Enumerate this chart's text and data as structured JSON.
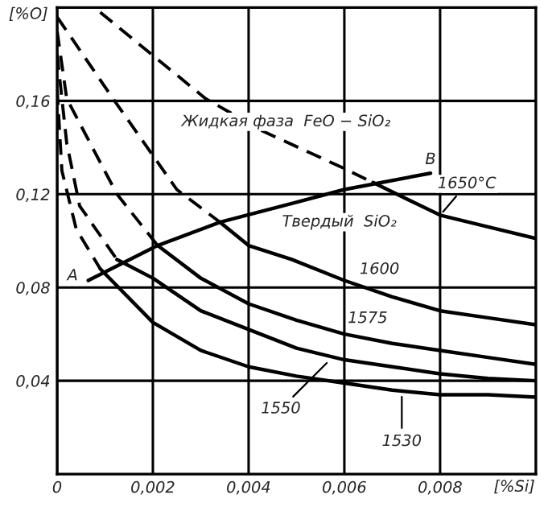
{
  "chart_data": {
    "type": "line",
    "xlabel": "[%Si]",
    "ylabel": "[%O]",
    "xlim": [
      0,
      0.01
    ],
    "ylim": [
      0,
      0.2
    ],
    "xticks": [
      {
        "value": 0,
        "label": "0"
      },
      {
        "value": 0.002,
        "label": "0,002"
      },
      {
        "value": 0.004,
        "label": "0,004"
      },
      {
        "value": 0.006,
        "label": "0,006"
      },
      {
        "value": 0.008,
        "label": "0,008"
      }
    ],
    "yticks": [
      {
        "value": 0.04,
        "label": "0,04"
      },
      {
        "value": 0.08,
        "label": "0,08"
      },
      {
        "value": 0.12,
        "label": "0,12"
      },
      {
        "value": 0.16,
        "label": "0,16"
      }
    ],
    "grid": true,
    "line_style": "solid",
    "marker": "none",
    "series": [
      {
        "color": "#000000",
        "line_style": "dashed",
        "x": [
          0.0009,
          0.0031,
          0.0043,
          0.006,
          0.0066
        ],
        "values": [
          0.198,
          0.161,
          0.147,
          0.131,
          0.125
        ]
      },
      {
        "color": "#000000",
        "x": [
          0.0066,
          0.008,
          0.009,
          0.01
        ],
        "values": [
          0.125,
          0.111,
          0.106,
          0.101
        ]
      },
      {
        "color": "#000000",
        "line_style": "dashed",
        "x": [
          0.0,
          0.0012,
          0.0025,
          0.0034
        ],
        "values": [
          0.196,
          0.16,
          0.122,
          0.108
        ]
      },
      {
        "color": "#000000",
        "x": [
          0.0034,
          0.004,
          0.0049,
          0.006,
          0.007,
          0.008,
          0.009,
          0.01
        ],
        "values": [
          0.108,
          0.098,
          0.092,
          0.083,
          0.076,
          0.07,
          0.067,
          0.064
        ]
      },
      {
        "color": "#000000",
        "line_style": "dashed",
        "x": [
          0.0,
          0.0002,
          0.00125,
          0.0021
        ],
        "values": [
          0.19,
          0.161,
          0.12,
          0.098
        ]
      },
      {
        "color": "#000000",
        "x": [
          0.0021,
          0.003,
          0.004,
          0.005,
          0.006,
          0.007,
          0.008,
          0.009,
          0.01
        ],
        "values": [
          0.098,
          0.084,
          0.073,
          0.066,
          0.06,
          0.056,
          0.053,
          0.05,
          0.047
        ]
      },
      {
        "color": "#000000",
        "line_style": "dashed",
        "x": [
          0.0,
          0.0002,
          0.00047,
          0.00125
        ],
        "values": [
          0.18,
          0.142,
          0.115,
          0.092
        ]
      },
      {
        "color": "#000000",
        "x": [
          0.00125,
          0.002,
          0.003,
          0.004,
          0.005,
          0.006,
          0.007,
          0.008,
          0.009,
          0.01
        ],
        "values": [
          0.092,
          0.084,
          0.07,
          0.062,
          0.054,
          0.049,
          0.046,
          0.043,
          0.041,
          0.04
        ]
      },
      {
        "color": "#000000",
        "line_style": "dashed",
        "x": [
          0.0,
          0.0001,
          0.0004,
          0.0009
        ],
        "values": [
          0.165,
          0.13,
          0.105,
          0.088
        ]
      },
      {
        "color": "#000000",
        "x": [
          0.0009,
          0.002,
          0.003,
          0.004,
          0.005,
          0.006,
          0.007,
          0.008,
          0.009,
          0.01
        ],
        "values": [
          0.088,
          0.065,
          0.053,
          0.046,
          0.042,
          0.039,
          0.036,
          0.034,
          0.034,
          0.033
        ]
      },
      {
        "color": "#000000",
        "x": [
          0.00065,
          0.0021,
          0.0034,
          0.0049,
          0.006,
          0.0078
        ],
        "values": [
          0.083,
          0.098,
          0.108,
          0.116,
          0.122,
          0.129
        ]
      }
    ],
    "annotations": [
      {
        "text": "1650°C",
        "x": 0.008,
        "y": 0.111
      },
      {
        "text": "1600",
        "x": 0.0065,
        "y": 0.08
      },
      {
        "text": "1575",
        "x": 0.0063,
        "y": 0.059
      },
      {
        "text": "1550",
        "x": 0.0057,
        "y": 0.049
      },
      {
        "text": "1530",
        "x": 0.0072,
        "y": 0.035
      },
      {
        "text": "A",
        "x": 0.00065,
        "y": 0.083
      },
      {
        "text": "B",
        "x": 0.0078,
        "y": 0.129
      },
      "Жидкая фаза  FeO − SiO₂",
      "Твердый  SiO₂"
    ]
  }
}
